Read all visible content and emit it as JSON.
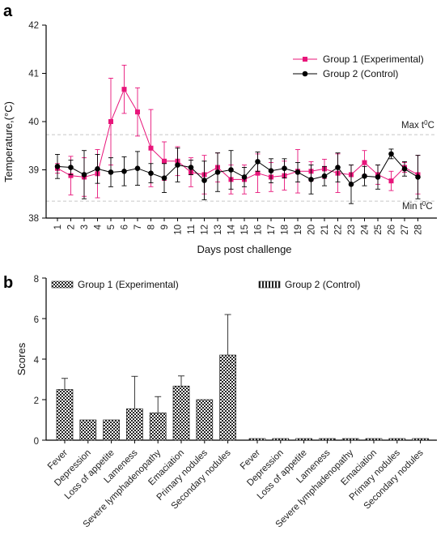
{
  "colors": {
    "group1": "#e8157a",
    "group2": "#000000",
    "refline": "#c8c8c8",
    "bar_edge": "#222222"
  },
  "chart_data": [
    {
      "panel_label": "a",
      "type": "line",
      "xlabel": "Days post challenge",
      "ylabel": "Temperature,(°C)",
      "ylim": [
        38,
        42
      ],
      "yticks": [
        "38",
        "39",
        "40",
        "41",
        "42"
      ],
      "x": [
        1,
        2,
        3,
        4,
        5,
        6,
        7,
        8,
        9,
        10,
        11,
        12,
        13,
        14,
        15,
        16,
        17,
        18,
        19,
        20,
        21,
        22,
        23,
        24,
        25,
        26,
        27,
        28
      ],
      "xticks": [
        "1",
        "2",
        "3",
        "4",
        "5",
        "6",
        "7",
        "8",
        "9",
        "10",
        "11",
        "12",
        "13",
        "14",
        "15",
        "16",
        "17",
        "18",
        "19",
        "20",
        "21",
        "22",
        "23",
        "24",
        "25",
        "26",
        "27",
        "28"
      ],
      "legend_position": "top-right",
      "series": [
        {
          "name": "Group 1 (Experimental)",
          "marker": "square",
          "color": "#e8157a",
          "values": [
            39.03,
            38.88,
            38.85,
            38.92,
            40.0,
            40.67,
            40.2,
            39.45,
            39.18,
            39.18,
            38.95,
            38.9,
            39.05,
            38.8,
            38.8,
            38.93,
            38.85,
            38.88,
            38.97,
            38.97,
            39.02,
            38.93,
            38.9,
            39.15,
            38.9,
            38.77,
            39.05,
            38.9
          ],
          "errors": [
            0.1,
            0.4,
            0.4,
            0.5,
            0.9,
            0.5,
            0.5,
            0.8,
            0.4,
            0.3,
            0.3,
            0.4,
            0.3,
            0.3,
            0.3,
            0.4,
            0.3,
            0.3,
            0.45,
            0.2,
            0.2,
            0.4,
            0.2,
            0.25,
            0.2,
            0.2,
            0.1,
            0.4
          ]
        },
        {
          "name": "Group 2 (Control)",
          "marker": "circle",
          "color": "#000000",
          "values": [
            39.07,
            39.05,
            38.9,
            39.02,
            38.95,
            38.97,
            39.03,
            38.93,
            38.83,
            39.1,
            39.05,
            38.78,
            38.95,
            39.0,
            38.85,
            39.17,
            38.98,
            39.03,
            38.95,
            38.8,
            38.87,
            39.05,
            38.7,
            38.87,
            38.85,
            39.33,
            39.02,
            38.85
          ],
          "errors": [
            0.25,
            0.15,
            0.5,
            0.3,
            0.3,
            0.3,
            0.35,
            0.2,
            0.3,
            0.35,
            0.15,
            0.4,
            0.4,
            0.4,
            0.2,
            0.2,
            0.25,
            0.2,
            0.2,
            0.3,
            0.2,
            0.3,
            0.4,
            0.2,
            0.25,
            0.1,
            0.15,
            0.45
          ]
        }
      ],
      "reference_lines": [
        {
          "value": 39.73,
          "label": "Max t",
          "superscript": "0",
          "unit": "C"
        },
        {
          "value": 38.35,
          "label": "Min t",
          "superscript": "0",
          "unit": "C"
        }
      ]
    },
    {
      "panel_label": "b",
      "type": "bar",
      "ylabel": "Scores",
      "ylim": [
        0,
        8
      ],
      "yticks": [
        "0",
        "2",
        "4",
        "6",
        "8"
      ],
      "legend_position": "top",
      "categories": [
        "Fever",
        "Depression",
        "Loss of appetite",
        "Lameness",
        "Severe lymphadenopathy",
        "Emaciation",
        "Primary nodules",
        "Secondary nodules"
      ],
      "series": [
        {
          "name": "Group 1 (Experimental)",
          "pattern": "checker",
          "values": [
            2.5,
            1.0,
            1.0,
            1.55,
            1.35,
            2.67,
            2.0,
            4.2
          ],
          "errors": [
            0.55,
            0,
            0,
            1.6,
            0.8,
            0.5,
            0,
            2.0
          ]
        },
        {
          "name": "Group 2 (Control)",
          "pattern": "dotted",
          "values": [
            0.08,
            0.08,
            0.08,
            0.08,
            0.08,
            0.08,
            0.08,
            0.08
          ],
          "errors": [
            0,
            0,
            0,
            0,
            0,
            0,
            0,
            0
          ]
        }
      ]
    }
  ]
}
